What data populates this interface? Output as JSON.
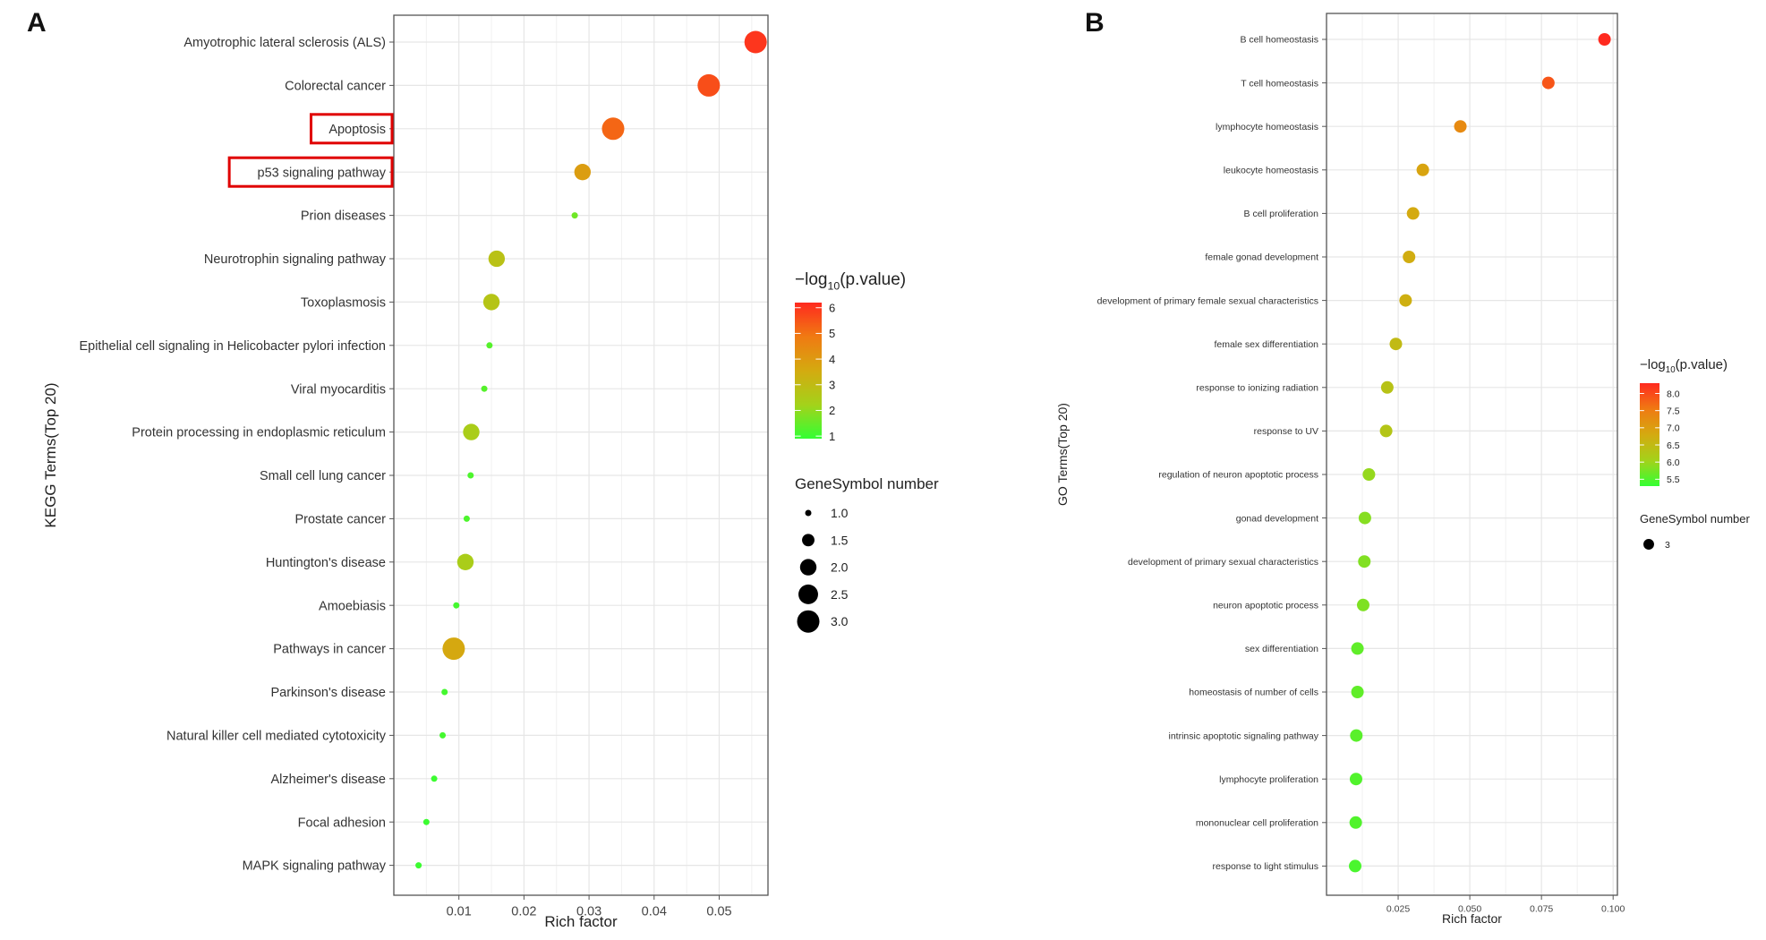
{
  "panels": [
    {
      "letter": "A"
    },
    {
      "letter": "B"
    }
  ],
  "chart_data": [
    {
      "type": "scatter",
      "xlabel": "Rich factor",
      "ylabel": "KEGG Terms(Top 20)",
      "xlim": [
        0.0,
        0.0575
      ],
      "xticks": [
        0.01,
        0.02,
        0.03,
        0.04,
        0.05
      ],
      "xtick_labels": [
        "0.01",
        "0.02",
        "0.03",
        "0.04",
        "0.05"
      ],
      "grid": true,
      "highlighted_terms": [
        "Apoptosis",
        "p53 signaling pathway"
      ],
      "highlight_color": "#e00000",
      "terms": [
        {
          "name": "Amyotrophic lateral sclerosis (ALS)",
          "rich_factor": 0.0556,
          "genes": 3,
          "neglog10p": 6.0
        },
        {
          "name": "Colorectal cancer",
          "rich_factor": 0.0484,
          "genes": 3,
          "neglog10p": 5.6
        },
        {
          "name": "Apoptosis",
          "rich_factor": 0.0337,
          "genes": 3,
          "neglog10p": 5.2
        },
        {
          "name": "p53 signaling pathway",
          "rich_factor": 0.029,
          "genes": 2,
          "neglog10p": 3.9
        },
        {
          "name": "Prion diseases",
          "rich_factor": 0.0278,
          "genes": 1,
          "neglog10p": 1.6
        },
        {
          "name": "Neurotrophin signaling pathway",
          "rich_factor": 0.0158,
          "genes": 2,
          "neglog10p": 2.8
        },
        {
          "name": "Toxoplasmosis",
          "rich_factor": 0.015,
          "genes": 2,
          "neglog10p": 2.7
        },
        {
          "name": "Epithelial cell signaling in Helicobacter pylori infection",
          "rich_factor": 0.0147,
          "genes": 1,
          "neglog10p": 1.3
        },
        {
          "name": "Viral myocarditis",
          "rich_factor": 0.0139,
          "genes": 1,
          "neglog10p": 1.3
        },
        {
          "name": "Protein processing in endoplasmic reticulum",
          "rich_factor": 0.0119,
          "genes": 2,
          "neglog10p": 2.4
        },
        {
          "name": "Small cell lung cancer",
          "rich_factor": 0.0118,
          "genes": 1,
          "neglog10p": 1.2
        },
        {
          "name": "Prostate cancer",
          "rich_factor": 0.0112,
          "genes": 1,
          "neglog10p": 1.2
        },
        {
          "name": "Huntington's disease",
          "rich_factor": 0.011,
          "genes": 2,
          "neglog10p": 2.4
        },
        {
          "name": "Amoebiasis",
          "rich_factor": 0.0096,
          "genes": 1,
          "neglog10p": 1.1
        },
        {
          "name": "Pathways in cancer",
          "rich_factor": 0.0092,
          "genes": 3,
          "neglog10p": 3.6
        },
        {
          "name": "Parkinson's disease",
          "rich_factor": 0.0078,
          "genes": 1,
          "neglog10p": 1.1
        },
        {
          "name": "Natural killer cell mediated cytotoxicity",
          "rich_factor": 0.0075,
          "genes": 1,
          "neglog10p": 1.1
        },
        {
          "name": "Alzheimer's disease",
          "rich_factor": 0.0062,
          "genes": 1,
          "neglog10p": 1.0
        },
        {
          "name": "Focal adhesion",
          "rich_factor": 0.005,
          "genes": 1,
          "neglog10p": 1.0
        },
        {
          "name": "MAPK signaling pathway",
          "rich_factor": 0.0038,
          "genes": 1,
          "neglog10p": 1.0
        }
      ],
      "color_legend": {
        "title_prefix": "−log",
        "title_sub": "10",
        "title_suffix": "(p.value)",
        "range": [
          0.9,
          6.2
        ],
        "ticks": [
          1,
          2,
          3,
          4,
          5,
          6
        ],
        "tick_labels": [
          "1",
          "2",
          "3",
          "4",
          "5",
          "6"
        ]
      },
      "size_legend": {
        "title": "GeneSymbol number",
        "values": [
          1.0,
          1.5,
          2.0,
          2.5,
          3.0
        ],
        "labels": [
          "1.0",
          "1.5",
          "2.0",
          "2.5",
          "3.0"
        ]
      },
      "color_scale": [
        "#33ff33",
        "#a4d21a",
        "#d4aa10",
        "#f07a12",
        "#ff2a1f"
      ]
    },
    {
      "type": "scatter",
      "xlabel": "Rich factor",
      "ylabel": "GO Terms(Top 20)",
      "xlim": [
        0.0,
        0.1015
      ],
      "xticks": [
        0.025,
        0.05,
        0.075,
        0.1
      ],
      "xtick_labels": [
        "0.025",
        "0.050",
        "0.075",
        "0.100"
      ],
      "grid": true,
      "terms": [
        {
          "name": "B cell homeostasis",
          "rich_factor": 0.097,
          "genes": 3,
          "neglog10p": 8.3
        },
        {
          "name": "T cell homeostasis",
          "rich_factor": 0.0774,
          "genes": 3,
          "neglog10p": 7.9
        },
        {
          "name": "lymphocyte homeostasis",
          "rich_factor": 0.0467,
          "genes": 3,
          "neglog10p": 7.3
        },
        {
          "name": "leukocyte homeostasis",
          "rich_factor": 0.0336,
          "genes": 3,
          "neglog10p": 6.9
        },
        {
          "name": "B cell proliferation",
          "rich_factor": 0.0302,
          "genes": 3,
          "neglog10p": 6.8
        },
        {
          "name": "female gonad development",
          "rich_factor": 0.0288,
          "genes": 3,
          "neglog10p": 6.75
        },
        {
          "name": "development of primary female sexual characteristics",
          "rich_factor": 0.0276,
          "genes": 3,
          "neglog10p": 6.7
        },
        {
          "name": "female sex differentiation",
          "rich_factor": 0.0242,
          "genes": 3,
          "neglog10p": 6.5
        },
        {
          "name": "response to ionizing radiation",
          "rich_factor": 0.0212,
          "genes": 3,
          "neglog10p": 6.35
        },
        {
          "name": "response to UV",
          "rich_factor": 0.0208,
          "genes": 3,
          "neglog10p": 6.3
        },
        {
          "name": "regulation of neuron apoptotic process",
          "rich_factor": 0.0148,
          "genes": 3,
          "neglog10p": 5.95
        },
        {
          "name": "gonad development",
          "rich_factor": 0.0134,
          "genes": 3,
          "neglog10p": 5.85
        },
        {
          "name": "development of primary sexual characteristics",
          "rich_factor": 0.0132,
          "genes": 3,
          "neglog10p": 5.82
        },
        {
          "name": "neuron apoptotic process",
          "rich_factor": 0.0128,
          "genes": 3,
          "neglog10p": 5.8
        },
        {
          "name": "sex differentiation",
          "rich_factor": 0.0108,
          "genes": 3,
          "neglog10p": 5.6
        },
        {
          "name": "homeostasis of number of cells",
          "rich_factor": 0.0108,
          "genes": 3,
          "neglog10p": 5.6
        },
        {
          "name": "intrinsic apoptotic signaling pathway",
          "rich_factor": 0.0104,
          "genes": 3,
          "neglog10p": 5.55
        },
        {
          "name": "lymphocyte proliferation",
          "rich_factor": 0.0103,
          "genes": 3,
          "neglog10p": 5.5
        },
        {
          "name": "mononuclear cell proliferation",
          "rich_factor": 0.0102,
          "genes": 3,
          "neglog10p": 5.5
        },
        {
          "name": "response to light stimulus",
          "rich_factor": 0.01,
          "genes": 3,
          "neglog10p": 5.45
        }
      ],
      "color_legend": {
        "title_prefix": "−log",
        "title_sub": "10",
        "title_suffix": "(p.value)",
        "range": [
          5.3,
          8.3
        ],
        "ticks": [
          5.5,
          6.0,
          6.5,
          7.0,
          7.5,
          8.0
        ],
        "tick_labels": [
          "5.5",
          "6.0",
          "6.5",
          "7.0",
          "7.5",
          "8.0"
        ]
      },
      "size_legend": {
        "title": "GeneSymbol number",
        "values": [
          3
        ],
        "labels": [
          "3"
        ]
      },
      "color_scale": [
        "#33ff33",
        "#a4d21a",
        "#d4aa10",
        "#f07a12",
        "#ff2a1f"
      ]
    }
  ]
}
